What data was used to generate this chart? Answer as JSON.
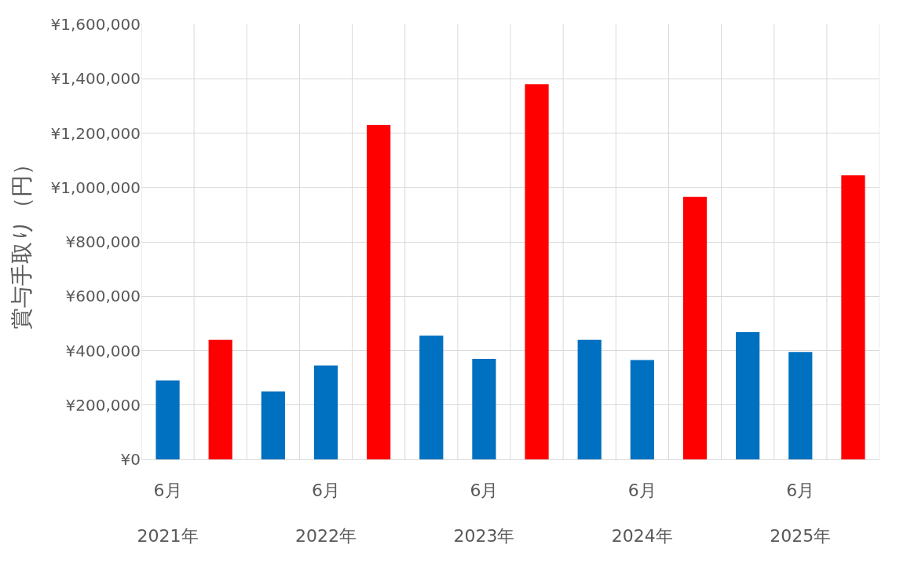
{
  "chart_data": {
    "type": "bar",
    "ylabel": "賞与手取り（円）",
    "categories": [
      "6月\n2021年",
      null,
      null,
      "6月\n2022年",
      null,
      null,
      "6月\n2023年",
      null,
      null,
      "6月\n2024年",
      null,
      null,
      "6月\n2025年",
      null
    ],
    "values": [
      290000,
      440000,
      250000,
      345000,
      1230000,
      455000,
      370000,
      1380000,
      440000,
      365000,
      965000,
      468000,
      395000,
      1045000
    ],
    "colors": [
      "#0070c0",
      "#ff0000",
      "#0070c0",
      "#0070c0",
      "#ff0000",
      "#0070c0",
      "#0070c0",
      "#ff0000",
      "#0070c0",
      "#0070c0",
      "#ff0000",
      "#0070c0",
      "#0070c0",
      "#ff0000"
    ],
    "ylim": [
      0,
      1600000
    ],
    "yticks": [
      {
        "value": 0,
        "label": "¥0"
      },
      {
        "value": 200000,
        "label": "¥200,000"
      },
      {
        "value": 400000,
        "label": "¥400,000"
      },
      {
        "value": 600000,
        "label": "¥600,000"
      },
      {
        "value": 800000,
        "label": "¥800,000"
      },
      {
        "value": 1000000,
        "label": "¥1,000,000"
      },
      {
        "value": 1200000,
        "label": "¥1,200,000"
      },
      {
        "value": 1400000,
        "label": "¥1,400,000"
      },
      {
        "value": 1600000,
        "label": "¥1,600,000"
      }
    ],
    "grid": true
  }
}
